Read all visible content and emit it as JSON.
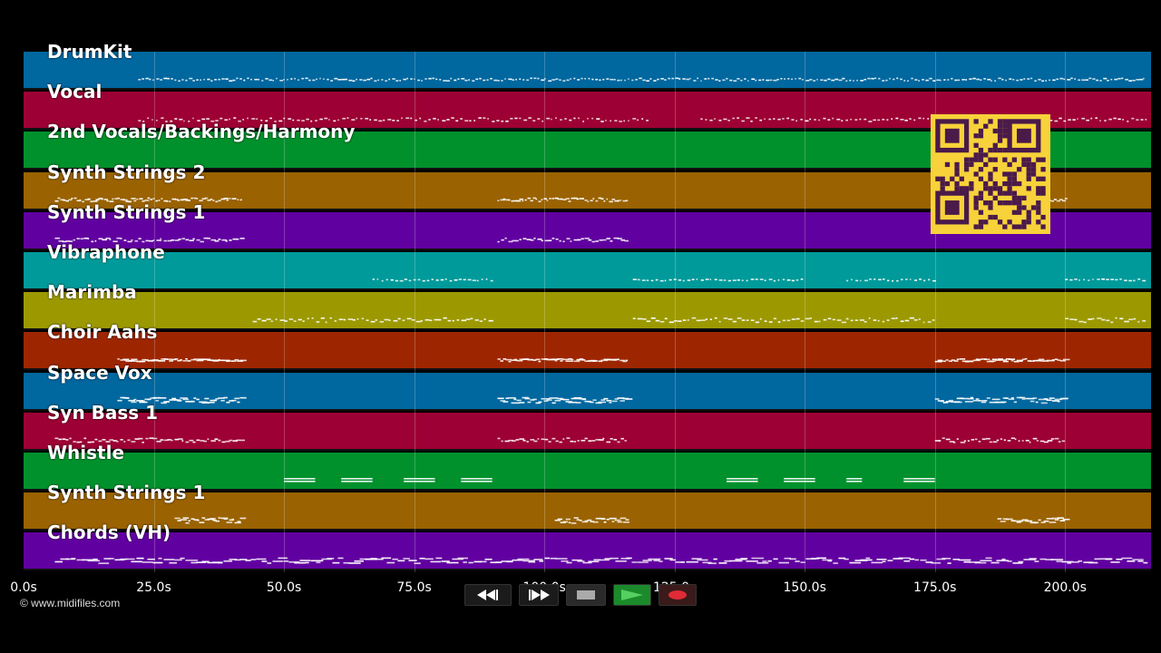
{
  "lanes": [
    {
      "label": "DrumKit",
      "color": "#00679f"
    },
    {
      "label": "Vocal",
      "color": "#9d0034"
    },
    {
      "label": "2nd Vocals/Backings/Harmony",
      "color": "#00912c"
    },
    {
      "label": "Synth Strings 2",
      "color": "#9a6200"
    },
    {
      "label": "Synth Strings 1",
      "color": "#6100a0"
    },
    {
      "label": "Vibraphone",
      "color": "#009a9a"
    },
    {
      "label": "Marimba",
      "color": "#9c9900"
    },
    {
      "label": "Choir Aahs",
      "color": "#9d2600"
    },
    {
      "label": "Space Vox",
      "color": "#00679f"
    },
    {
      "label": "Syn Bass 1",
      "color": "#9d0034"
    },
    {
      "label": "Whistle",
      "color": "#00912c"
    },
    {
      "label": "Synth Strings 1",
      "color": "#9a6200"
    },
    {
      "label": "Chords (VH)",
      "color": "#6100a0"
    }
  ],
  "timeline": {
    "ticks": [
      "0.0s",
      "25.0s",
      "50.0s",
      "75.0s",
      "100.0s",
      "125.0s",
      "150.0s",
      "175.0s",
      "200.0s"
    ],
    "tick_values": [
      0,
      25,
      50,
      75,
      100,
      125,
      150,
      175,
      200
    ],
    "max_seconds": 216.5
  },
  "transport": {
    "rewind_icon": "rewind-icon",
    "fastforward_icon": "fast-forward-icon",
    "stop_icon": "stop-icon",
    "play_icon": "play-icon",
    "record_icon": "record-icon",
    "play_color": "#1a8a2a",
    "record_color": "#e02b36"
  },
  "footer": {
    "copyright": "© www.midifiles.com"
  }
}
